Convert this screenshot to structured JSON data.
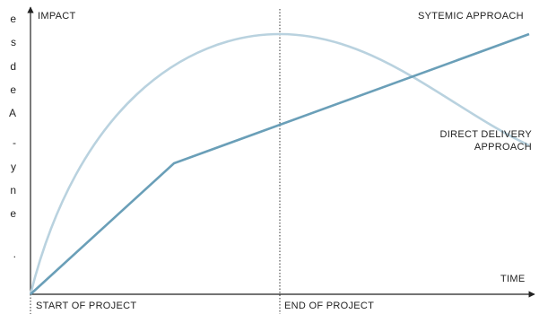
{
  "diagram": {
    "axis_labels": {
      "y": "IMPACT",
      "x": "TIME",
      "start": "START OF PROJECT",
      "end": "END OF PROJECT"
    },
    "series": [
      {
        "name": "SYTEMIC APPROACH",
        "shape": "piecewise-linear",
        "color": "#6a9fb8"
      },
      {
        "name_line1": "DIRECT DELIVERY",
        "name_line2": "APPROACH",
        "shape": "arc",
        "color": "#b9d2df"
      }
    ],
    "cut_off_letters": [
      "e",
      "s",
      "d",
      "e",
      "A",
      "-",
      "y",
      "n",
      "e",
      "."
    ]
  }
}
